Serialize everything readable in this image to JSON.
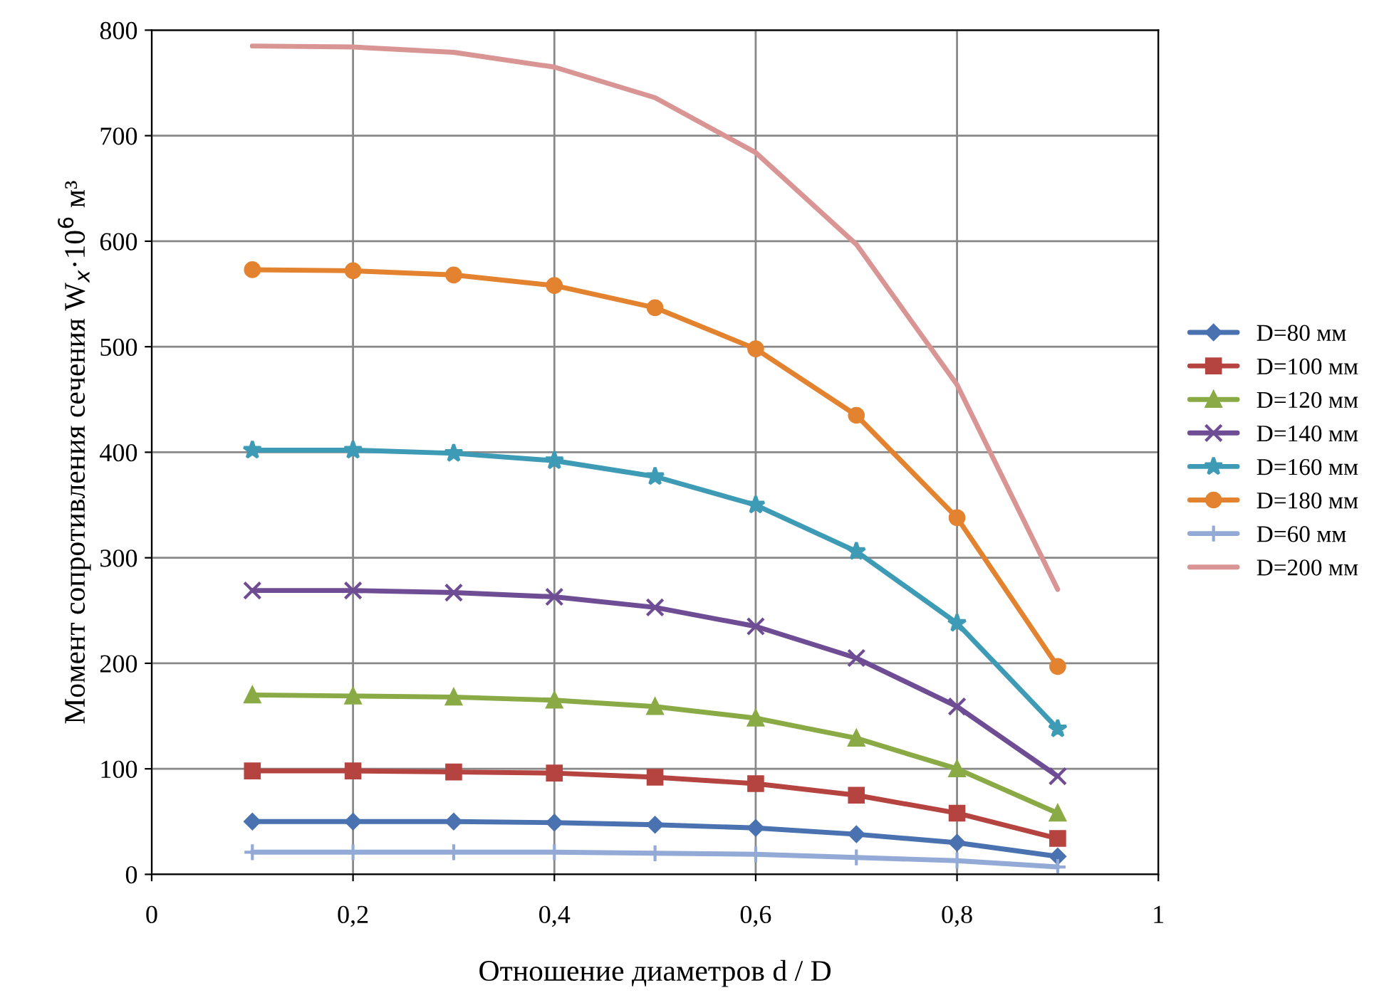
{
  "chart_data": {
    "type": "line",
    "xlabel": "Отношение диаметров d / D",
    "ylabel": "Момент сопротивления сечения W$_{x}$·10$^{6}$ м³",
    "x": [
      0.1,
      0.2,
      0.3,
      0.4,
      0.5,
      0.6,
      0.7,
      0.8,
      0.9
    ],
    "xlim": [
      0,
      1
    ],
    "xticks": [
      0,
      {
        "value": 0.2,
        "label": "0,2"
      },
      {
        "value": 0.4,
        "label": "0,4"
      },
      {
        "value": 0.6,
        "label": "0,6"
      },
      {
        "value": 0.8,
        "label": "0,8"
      },
      1
    ],
    "ylim": [
      0,
      800
    ],
    "yticks": [
      0,
      100,
      200,
      300,
      400,
      500,
      600,
      700,
      800
    ],
    "grid": true,
    "legend": "right",
    "series": [
      {
        "name": "D=80 мм",
        "color": "#4a72b0",
        "marker": "diamond",
        "values": [
          50,
          50,
          50,
          49,
          47,
          44,
          38,
          30,
          17
        ]
      },
      {
        "name": "D=100 мм",
        "color": "#b5433f",
        "marker": "square",
        "values": [
          98,
          98,
          97,
          96,
          92,
          86,
          75,
          58,
          34
        ]
      },
      {
        "name": "D=120 мм",
        "color": "#8aaa45",
        "marker": "triangle",
        "values": [
          170,
          169,
          168,
          165,
          159,
          148,
          129,
          100,
          58
        ]
      },
      {
        "name": "D=140 мм",
        "color": "#6f4d94",
        "marker": "cross",
        "values": [
          269,
          269,
          267,
          263,
          253,
          235,
          205,
          159,
          93
        ]
      },
      {
        "name": "D=160 мм",
        "color": "#3e9bb5",
        "marker": "star",
        "values": [
          402,
          402,
          399,
          392,
          377,
          350,
          306,
          238,
          138
        ]
      },
      {
        "name": "D=180 мм",
        "color": "#e3822f",
        "marker": "circle",
        "values": [
          573,
          572,
          568,
          558,
          537,
          498,
          435,
          338,
          197
        ]
      },
      {
        "name": "D=60 мм",
        "color": "#93aad6",
        "marker": "plus",
        "values": [
          21,
          21,
          21,
          21,
          20,
          19,
          16,
          13,
          7
        ]
      },
      {
        "name": "D=200 мм",
        "color": "#d99594",
        "marker": "none",
        "values": [
          785,
          784,
          779,
          765,
          736,
          684,
          597,
          464,
          270
        ]
      }
    ]
  }
}
